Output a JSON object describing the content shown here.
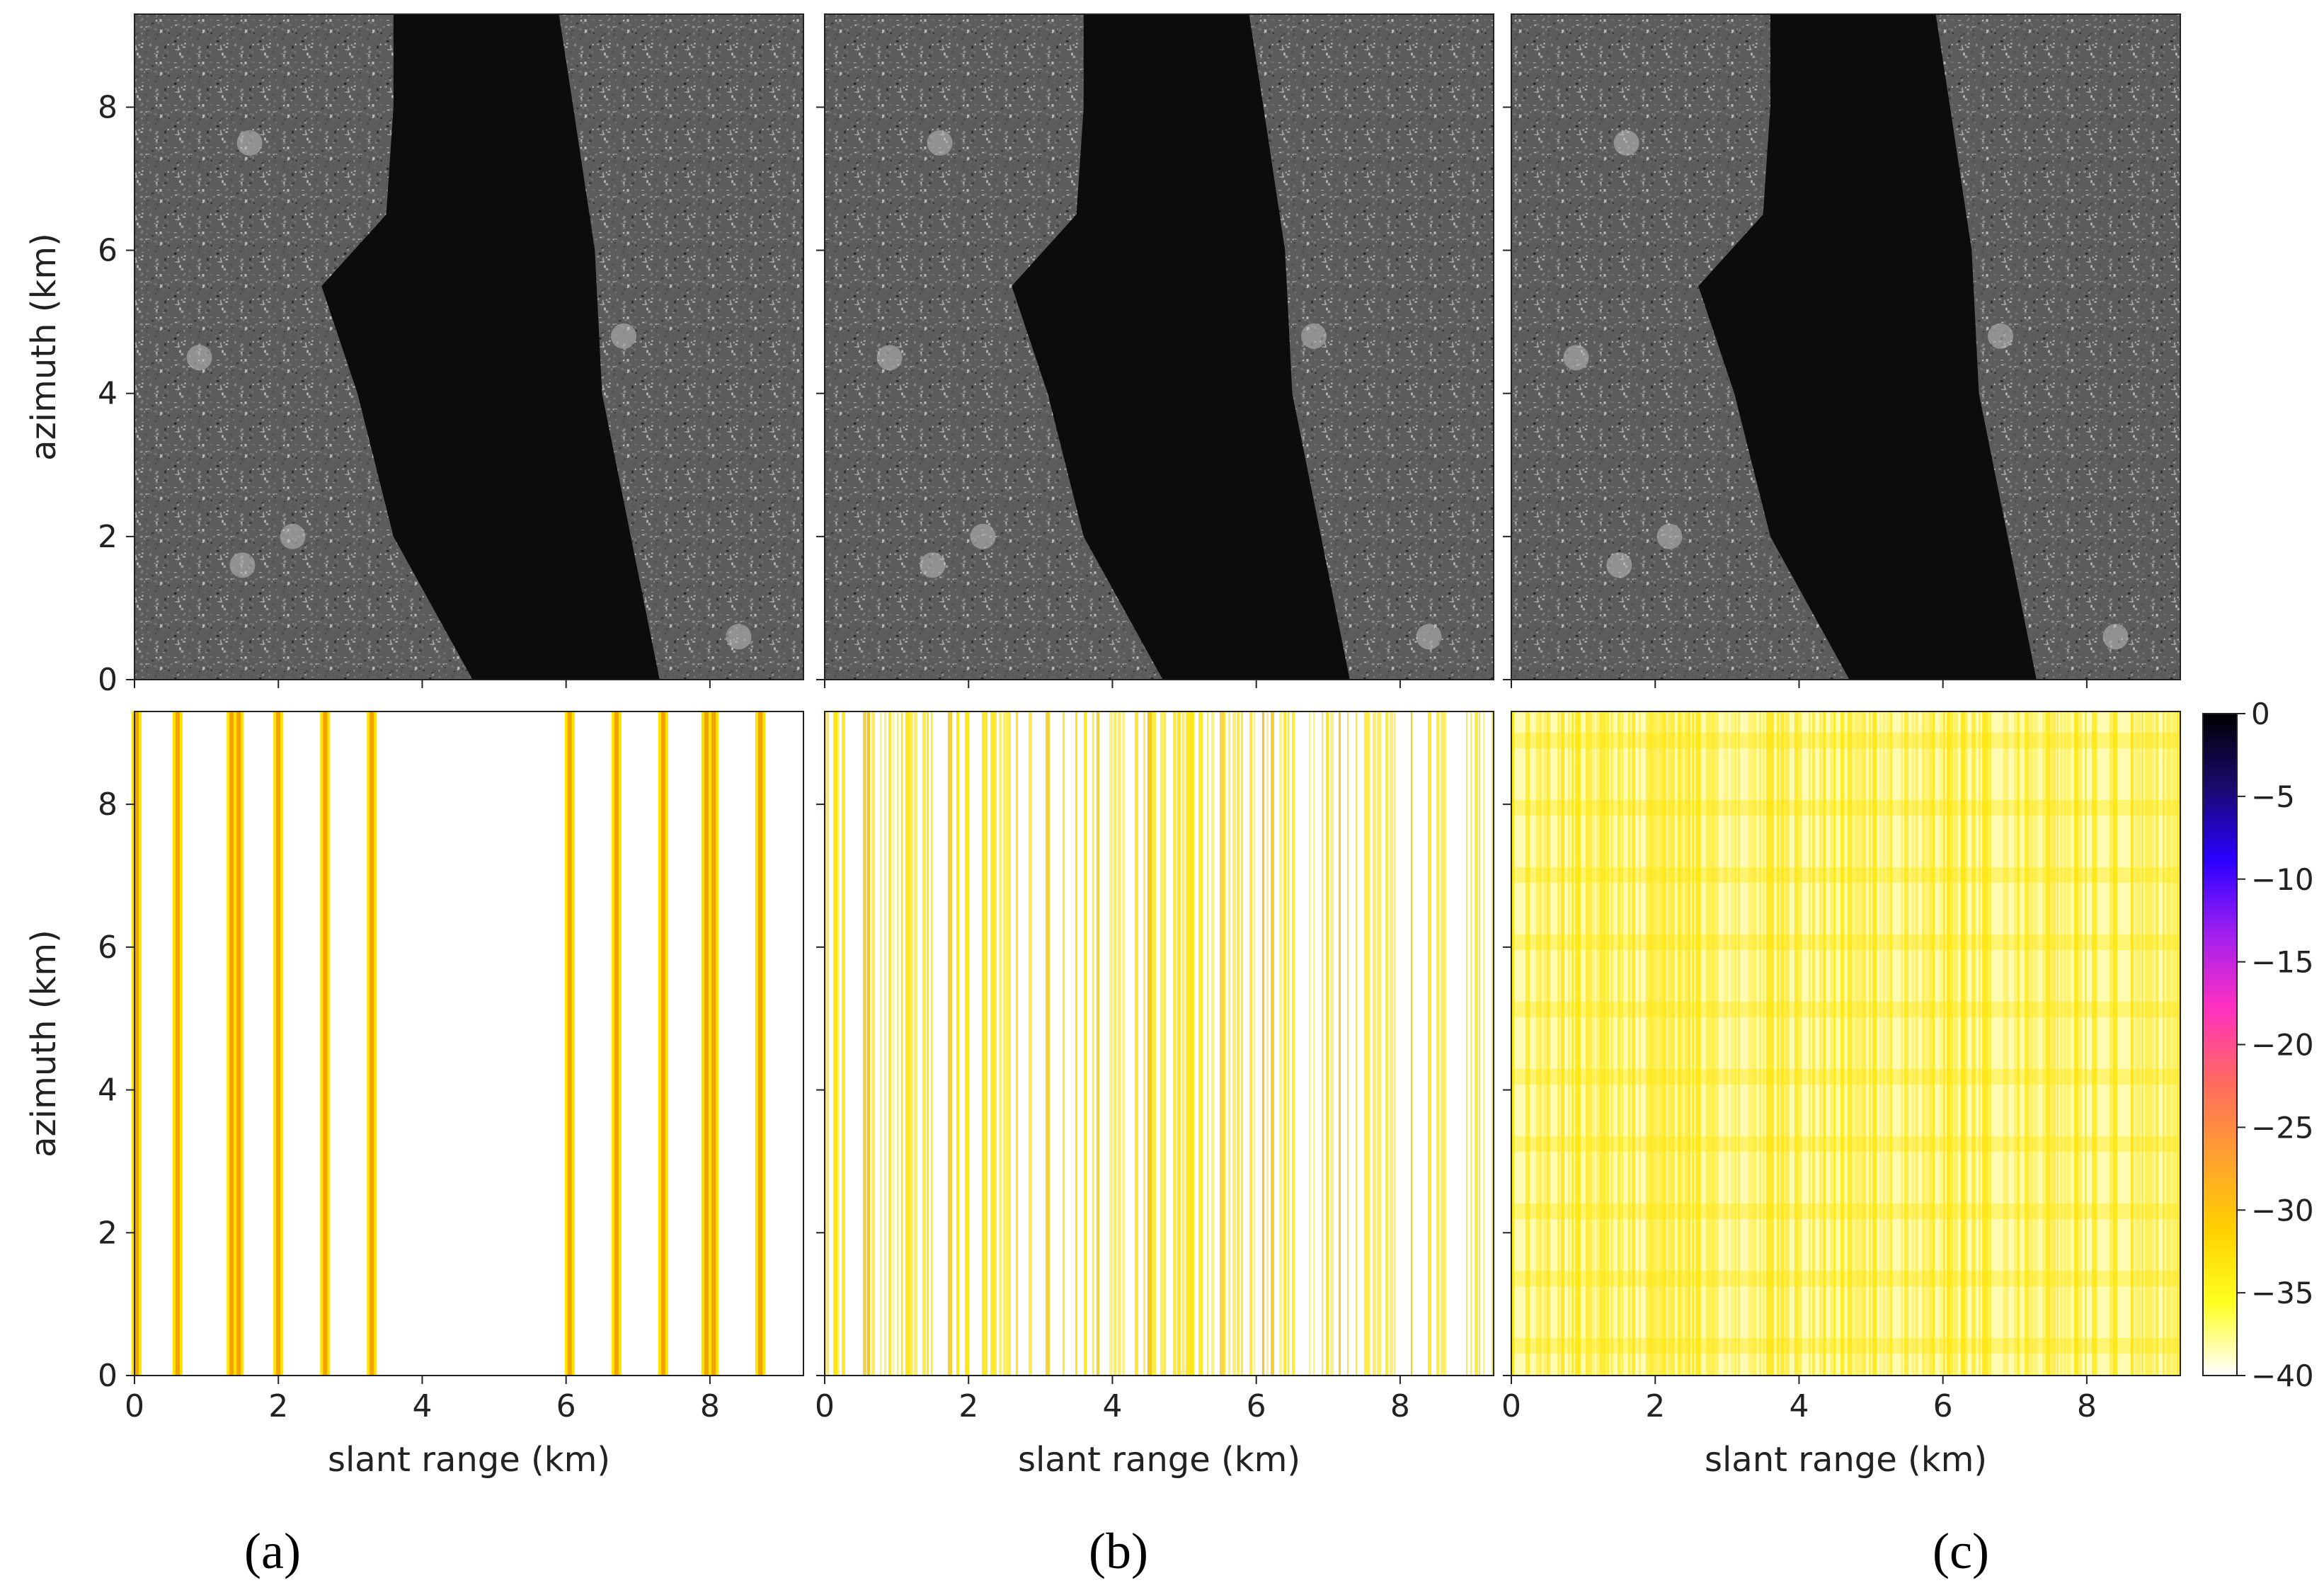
{
  "panel_labels": [
    "(a)",
    "(b)",
    "(c)"
  ],
  "colors": {
    "sar_dark": "#0c0c0c",
    "sar_land": "#5c5c5c",
    "stripe_yellow": "#ffe400",
    "stripe_orange": "#f4a200",
    "cmap": [
      "#000000",
      "#1a0a6e",
      "#2b00ff",
      "#a020f0",
      "#ff30c0",
      "#ff6a60",
      "#ff9f30",
      "#ffd000",
      "#ffff20",
      "#ffffff"
    ]
  },
  "chart_data": [
    {
      "type": "heatmap",
      "panel": "(a)",
      "row": "top",
      "content": "SAR amplitude image (grayscale): coastline with dark water channel",
      "xlim": [
        0,
        9.3
      ],
      "ylim": [
        0,
        9.3
      ],
      "yticks": [
        0,
        2,
        4,
        6,
        8
      ],
      "ylabel": "azimuth (km)",
      "water_left_edge_km": [
        [
          0,
          4.7
        ],
        [
          2,
          3.6
        ],
        [
          4,
          3.1
        ],
        [
          5.5,
          2.6
        ],
        [
          6.5,
          3.5
        ],
        [
          8,
          3.6
        ],
        [
          9.3,
          3.6
        ]
      ],
      "water_right_edge_km": [
        [
          0,
          7.3
        ],
        [
          2,
          6.9
        ],
        [
          4,
          6.5
        ],
        [
          6,
          6.4
        ],
        [
          8,
          6.1
        ],
        [
          9.3,
          5.9
        ]
      ]
    },
    {
      "type": "heatmap",
      "panel": "(b)",
      "row": "top",
      "content": "SAR amplitude image (grayscale): coastline with dark water channel",
      "xlim": [
        0,
        9.3
      ],
      "ylim": [
        0,
        9.3
      ],
      "water_left_edge_km": [
        [
          0,
          4.7
        ],
        [
          2,
          3.6
        ],
        [
          4,
          3.1
        ],
        [
          5.5,
          2.6
        ],
        [
          6.5,
          3.5
        ],
        [
          8,
          3.6
        ],
        [
          9.3,
          3.6
        ]
      ],
      "water_right_edge_km": [
        [
          0,
          7.3
        ],
        [
          2,
          6.9
        ],
        [
          4,
          6.5
        ],
        [
          6,
          6.4
        ],
        [
          8,
          6.1
        ],
        [
          9.3,
          5.9
        ]
      ]
    },
    {
      "type": "heatmap",
      "panel": "(c)",
      "row": "top",
      "content": "SAR amplitude image (grayscale): coastline with dark water channel",
      "xlim": [
        0,
        9.3
      ],
      "ylim": [
        0,
        9.3
      ],
      "water_left_edge_km": [
        [
          0,
          4.7
        ],
        [
          2,
          3.6
        ],
        [
          4,
          3.1
        ],
        [
          5.5,
          2.6
        ],
        [
          6.5,
          3.5
        ],
        [
          8,
          3.6
        ],
        [
          9.3,
          3.6
        ]
      ],
      "water_right_edge_km": [
        [
          0,
          7.3
        ],
        [
          2,
          6.9
        ],
        [
          4,
          6.5
        ],
        [
          6,
          6.4
        ],
        [
          8,
          6.1
        ],
        [
          9.3,
          5.9
        ]
      ]
    },
    {
      "type": "heatmap",
      "panel": "(a)",
      "row": "bottom",
      "content": "difference map (dB): discrete vertical stripes",
      "xlim": [
        0,
        9.3
      ],
      "ylim": [
        0,
        9.3
      ],
      "xticks": [
        0,
        2,
        4,
        6,
        8
      ],
      "yticks": [
        0,
        2,
        4,
        6,
        8
      ],
      "xlabel": "slant range (km)",
      "ylabel": "azimuth (km)",
      "stripe_positions_km": [
        0.03,
        0.6,
        1.35,
        1.45,
        2.0,
        2.65,
        3.3,
        6.05,
        6.7,
        7.35,
        7.95,
        8.05,
        8.7
      ],
      "stripe_value_db": -35
    },
    {
      "type": "heatmap",
      "panel": "(b)",
      "row": "bottom",
      "content": "difference map (dB): dense vertical stripes",
      "xlim": [
        0,
        9.3
      ],
      "ylim": [
        0,
        9.3
      ],
      "xticks": [
        0,
        2,
        4,
        6,
        8
      ],
      "xlabel": "slant range (km)",
      "stripe_value_db_range": [
        -40,
        -34
      ]
    },
    {
      "type": "heatmap",
      "panel": "(c)",
      "row": "bottom",
      "content": "difference map (dB): dense stripes with azimuth banding",
      "xlim": [
        0,
        9.3
      ],
      "ylim": [
        0,
        9.3
      ],
      "xticks": [
        0,
        2,
        4,
        6,
        8
      ],
      "xlabel": "slant range (km)",
      "stripe_value_db_range": [
        -40,
        -36
      ]
    },
    {
      "type": "colorbar",
      "range": [
        -40,
        0
      ],
      "ticks": [
        0,
        -5,
        -10,
        -15,
        -20,
        -25,
        -30,
        -35,
        -40
      ],
      "tick_labels": [
        "0",
        "−5",
        "−10",
        "−15",
        "−20",
        "−25",
        "−30",
        "−35",
        "−40"
      ]
    }
  ]
}
